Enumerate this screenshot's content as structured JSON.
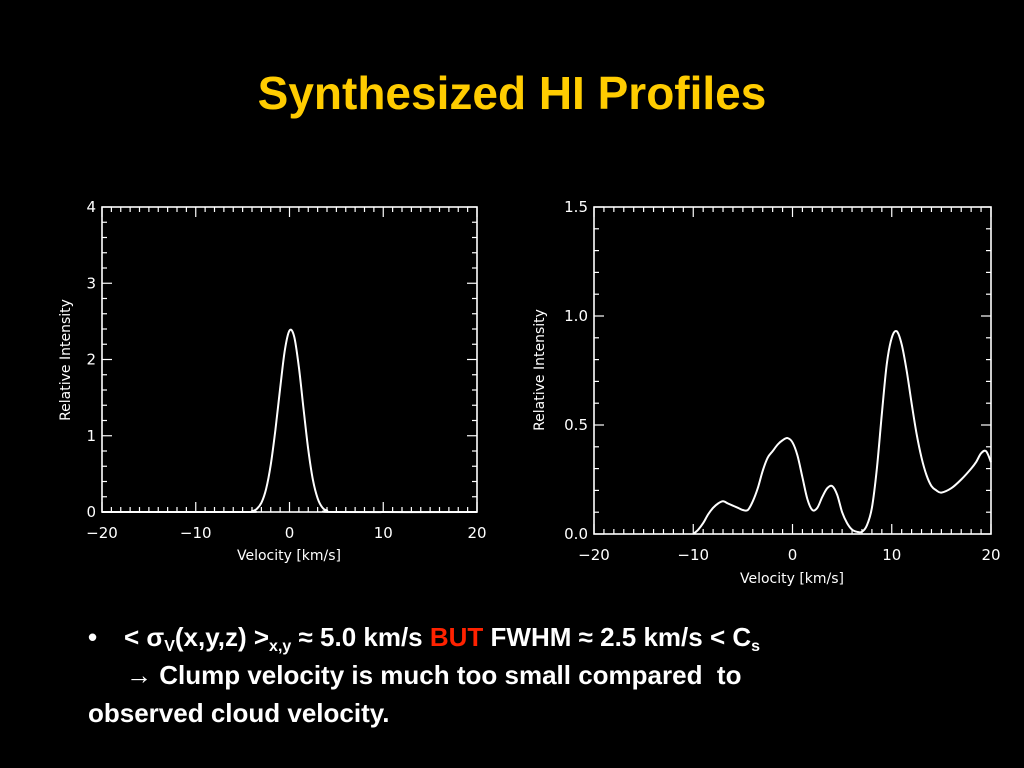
{
  "slide": {
    "title": "Synthesized HI Profiles",
    "title_color": "#FFCC00",
    "background": "#000000",
    "emphasis_color": "#FF2200"
  },
  "chart_data": [
    {
      "type": "line",
      "xlabel": "Velocity [km/s]",
      "ylabel": "Relative Intensity",
      "xlim": [
        -20,
        20
      ],
      "ylim": [
        0,
        4
      ],
      "xticks": [
        -20,
        -10,
        0,
        10,
        20
      ],
      "xtick_labels": [
        "−20",
        "−10",
        "0",
        "10",
        "20"
      ],
      "yticks": [
        0,
        1,
        2,
        3,
        4
      ],
      "ytick_labels": [
        "0",
        "1",
        "2",
        "3",
        "4"
      ],
      "series": [
        {
          "x": [
            -20,
            -5,
            -4,
            -3.5,
            -3,
            -2.5,
            -2,
            -1.5,
            -1,
            -0.5,
            0,
            0.5,
            1,
            1.5,
            2,
            2.5,
            3,
            3.5,
            4,
            5,
            20
          ],
          "y": [
            0,
            0,
            0.01,
            0.04,
            0.12,
            0.3,
            0.62,
            1.08,
            1.62,
            2.12,
            2.38,
            2.3,
            1.9,
            1.35,
            0.82,
            0.42,
            0.18,
            0.06,
            0.02,
            0,
            0
          ]
        }
      ]
    },
    {
      "type": "line",
      "xlabel": "Velocity [km/s]",
      "ylabel": "Relative Intensity",
      "xlim": [
        -20,
        20
      ],
      "ylim": [
        0,
        1.5
      ],
      "xticks": [
        -20,
        -10,
        0,
        10,
        20
      ],
      "xtick_labels": [
        "−20",
        "−10",
        "0",
        "10",
        "20"
      ],
      "yticks": [
        0,
        0.5,
        1.0,
        1.5
      ],
      "ytick_labels": [
        "0.0",
        "0.5",
        "1.0",
        "1.5"
      ],
      "series": [
        {
          "x": [
            -10,
            -9.5,
            -9,
            -8.5,
            -8,
            -7.5,
            -7,
            -6.5,
            -6,
            -5.5,
            -5,
            -4.5,
            -4,
            -3.5,
            -3,
            -2.5,
            -2,
            -1.5,
            -1,
            -0.5,
            0,
            0.5,
            1,
            1.5,
            2,
            2.5,
            3,
            3.5,
            4,
            4.5,
            5,
            5.5,
            6,
            6.5,
            7,
            7.5,
            8,
            8.5,
            9,
            9.5,
            10,
            10.5,
            11,
            11.5,
            12,
            12.5,
            13,
            13.5,
            14,
            14.5,
            15,
            16,
            17,
            18,
            18.5,
            19,
            19.5,
            20
          ],
          "y": [
            0,
            0.02,
            0.05,
            0.09,
            0.12,
            0.14,
            0.15,
            0.14,
            0.13,
            0.12,
            0.11,
            0.11,
            0.15,
            0.21,
            0.29,
            0.35,
            0.38,
            0.41,
            0.43,
            0.44,
            0.42,
            0.36,
            0.26,
            0.16,
            0.11,
            0.12,
            0.17,
            0.21,
            0.22,
            0.18,
            0.1,
            0.05,
            0.02,
            0.01,
            0.01,
            0.04,
            0.12,
            0.3,
            0.55,
            0.78,
            0.9,
            0.93,
            0.87,
            0.75,
            0.6,
            0.46,
            0.35,
            0.27,
            0.22,
            0.2,
            0.19,
            0.21,
            0.25,
            0.3,
            0.33,
            0.37,
            0.38,
            0.33
          ]
        }
      ]
    }
  ],
  "bullet": {
    "symbol": "•",
    "part1": "< σ",
    "sub_v": "V",
    "part2": "(x,y,z) >",
    "sub_xy": "x,y",
    "part3": " ≈ 5.0 km/s ",
    "but": "BUT",
    "part4": " FWHM ≈ 2.5 km/s < C",
    "sub_s": "s",
    "line2": "→ Clump velocity is much too small compared  to",
    "line3": "observed cloud velocity."
  }
}
